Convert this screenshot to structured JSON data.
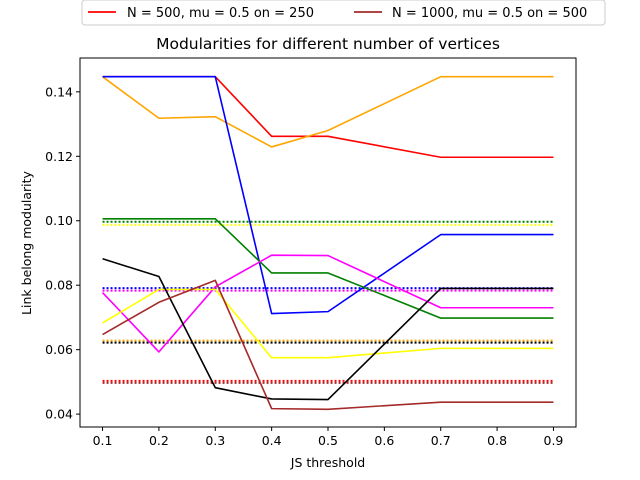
{
  "chart_data": {
    "type": "line",
    "title": "Modularities for different number of vertices",
    "xlabel": "JS threshold",
    "ylabel": "Link belong modularity",
    "xlim": [
      0.06,
      0.94
    ],
    "ylim": [
      0.036,
      0.1505
    ],
    "xticks": [
      0.1,
      0.2,
      0.3,
      0.4,
      0.5,
      0.6,
      0.7,
      0.8,
      0.9
    ],
    "yticks": [
      0.04,
      0.06,
      0.08,
      0.1,
      0.12,
      0.14
    ],
    "xtick_labels": [
      "0.1",
      "0.2",
      "0.3",
      "0.4",
      "0.5",
      "0.6",
      "0.7",
      "0.8",
      "0.9"
    ],
    "ytick_labels": [
      "0.04",
      "0.06",
      "0.08",
      "0.10",
      "0.12",
      "0.14"
    ],
    "grid": false,
    "legend_placement": "top-center-outside",
    "legend": [
      {
        "label": "N = 500, mu = 0.5 on = 250",
        "color": "#ff0000"
      },
      {
        "label": "N = 1000, mu = 0.5 on = 500",
        "color": "#a52a2a"
      }
    ],
    "x": [
      0.1,
      0.2,
      0.3,
      0.4,
      0.5,
      0.7,
      0.9
    ],
    "series": [
      {
        "color": "#ff0000",
        "style": "solid",
        "values": [
          0.1447,
          0.1447,
          0.1447,
          0.1262,
          0.1262,
          0.1197,
          0.1197
        ]
      },
      {
        "color": "#ffa500",
        "style": "solid",
        "values": [
          0.1447,
          0.1318,
          0.1323,
          0.1229,
          0.128,
          0.1447,
          0.1447
        ]
      },
      {
        "color": "#0000ff",
        "style": "solid",
        "values": [
          0.1447,
          0.1447,
          0.1447,
          0.0712,
          0.0718,
          0.0957,
          0.0957
        ]
      },
      {
        "color": "#008000",
        "style": "solid",
        "values": [
          0.1006,
          0.1006,
          0.1006,
          0.0838,
          0.0838,
          0.0698,
          0.0698
        ]
      },
      {
        "color": "#ff00ff",
        "style": "solid",
        "values": [
          0.0777,
          0.0593,
          0.0795,
          0.0893,
          0.0892,
          0.073,
          0.073
        ]
      },
      {
        "color": "#ffff00",
        "style": "solid",
        "values": [
          0.0683,
          0.0787,
          0.0787,
          0.0575,
          0.0575,
          0.0604,
          0.0604
        ]
      },
      {
        "color": "#000000",
        "style": "solid",
        "values": [
          0.0882,
          0.0827,
          0.0482,
          0.0447,
          0.0445,
          0.079,
          0.079
        ]
      },
      {
        "color": "#a52a2a",
        "style": "solid",
        "values": [
          0.0647,
          0.0747,
          0.0815,
          0.0417,
          0.0415,
          0.0437,
          0.0437
        ]
      }
    ],
    "reference_lines": [
      {
        "color": "#008000",
        "style": "dotted",
        "y": 0.0997
      },
      {
        "color": "#ffff00",
        "style": "dotted",
        "y": 0.0987
      },
      {
        "color": "#0000ff",
        "style": "dotted",
        "y": 0.0791
      },
      {
        "color": "#ff00ff",
        "style": "dotted",
        "y": 0.0783
      },
      {
        "color": "#ffa500",
        "style": "dotted",
        "y": 0.0628
      },
      {
        "color": "#000000",
        "style": "dotted",
        "y": 0.0622
      },
      {
        "color": "#ff0000",
        "style": "dotted",
        "y": 0.0503
      },
      {
        "color": "#a52a2a",
        "style": "dotted",
        "y": 0.0497
      }
    ]
  }
}
